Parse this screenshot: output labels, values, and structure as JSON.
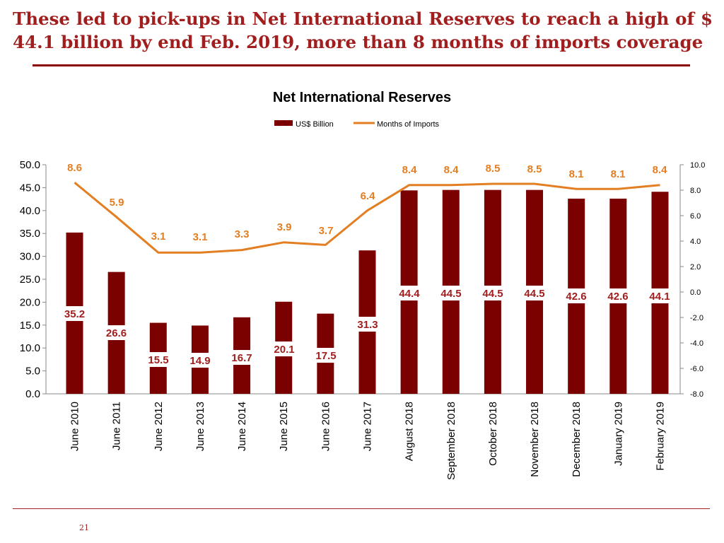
{
  "slide": {
    "headline": "These led to pick-ups in Net International Reserves to reach a high of $ 44.1 billion by end Feb. 2019, more than 8 months of imports coverage",
    "page_number": "21"
  },
  "colors": {
    "headline": "#a01e1e",
    "rule": "#8b0000",
    "bars": "#7b0000",
    "line": "#e37e22",
    "bar_label": "#a01e1e",
    "line_label": "#e37e22"
  },
  "chart_data": {
    "type": "bar",
    "title": "Net International Reserves",
    "legend_position": "top",
    "grid": false,
    "categories": [
      "June 2010",
      "June 2011",
      "June 2012",
      "June 2013",
      "June 2014",
      "June 2015",
      "June 2016",
      "June 2017",
      "August 2018",
      "September 2018",
      "October 2018",
      "November 2018",
      "December 2018",
      "January 2019",
      "February 2019"
    ],
    "series": [
      {
        "name": "US$ Billion",
        "type": "bar",
        "axis": "left",
        "values": [
          35.2,
          26.6,
          15.5,
          14.9,
          16.7,
          20.1,
          17.5,
          31.3,
          44.4,
          44.5,
          44.5,
          44.5,
          42.6,
          42.6,
          44.1
        ]
      },
      {
        "name": "Months of Imports",
        "type": "line",
        "axis": "right",
        "values": [
          8.6,
          5.9,
          3.1,
          3.1,
          3.3,
          3.9,
          3.7,
          6.4,
          8.4,
          8.4,
          8.5,
          8.5,
          8.1,
          8.1,
          8.4
        ]
      }
    ],
    "y_left": {
      "min": 0,
      "max": 50,
      "step": 5,
      "ticks": [
        "50.0",
        "45.0",
        "40.0",
        "35.0",
        "30.0",
        "25.0",
        "20.0",
        "15.0",
        "10.0",
        "5.0",
        "0.0"
      ]
    },
    "y_right": {
      "min": -8,
      "max": 10,
      "step": 2,
      "ticks": [
        "10.0",
        "8.0",
        "6.0",
        "4.0",
        "2.0",
        "0.0",
        "-2.0",
        "-4.0",
        "-6.0",
        "-8.0"
      ]
    },
    "bar_labels": [
      "35.2",
      "26.6",
      "15.5",
      "14.9",
      "16.7",
      "20.1",
      "17.5",
      "31.3",
      "44.4",
      "44.5",
      "44.5",
      "44.5",
      "42.6",
      "42.6",
      "44.1"
    ],
    "line_labels": [
      "8.6",
      "5.9",
      "3.1",
      "3.1",
      "3.3",
      "3.9",
      "3.7",
      "6.4",
      "8.4",
      "8.4",
      "8.5",
      "8.5",
      "8.1",
      "8.1",
      "8.4"
    ]
  }
}
